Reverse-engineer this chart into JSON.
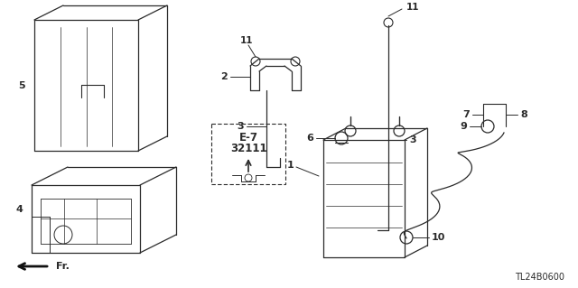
{
  "bg_color": "#ffffff",
  "lc": "#2a2a2a",
  "diagram_code": "TL24B0600",
  "figsize": [
    6.4,
    3.19
  ],
  "dpi": 100
}
